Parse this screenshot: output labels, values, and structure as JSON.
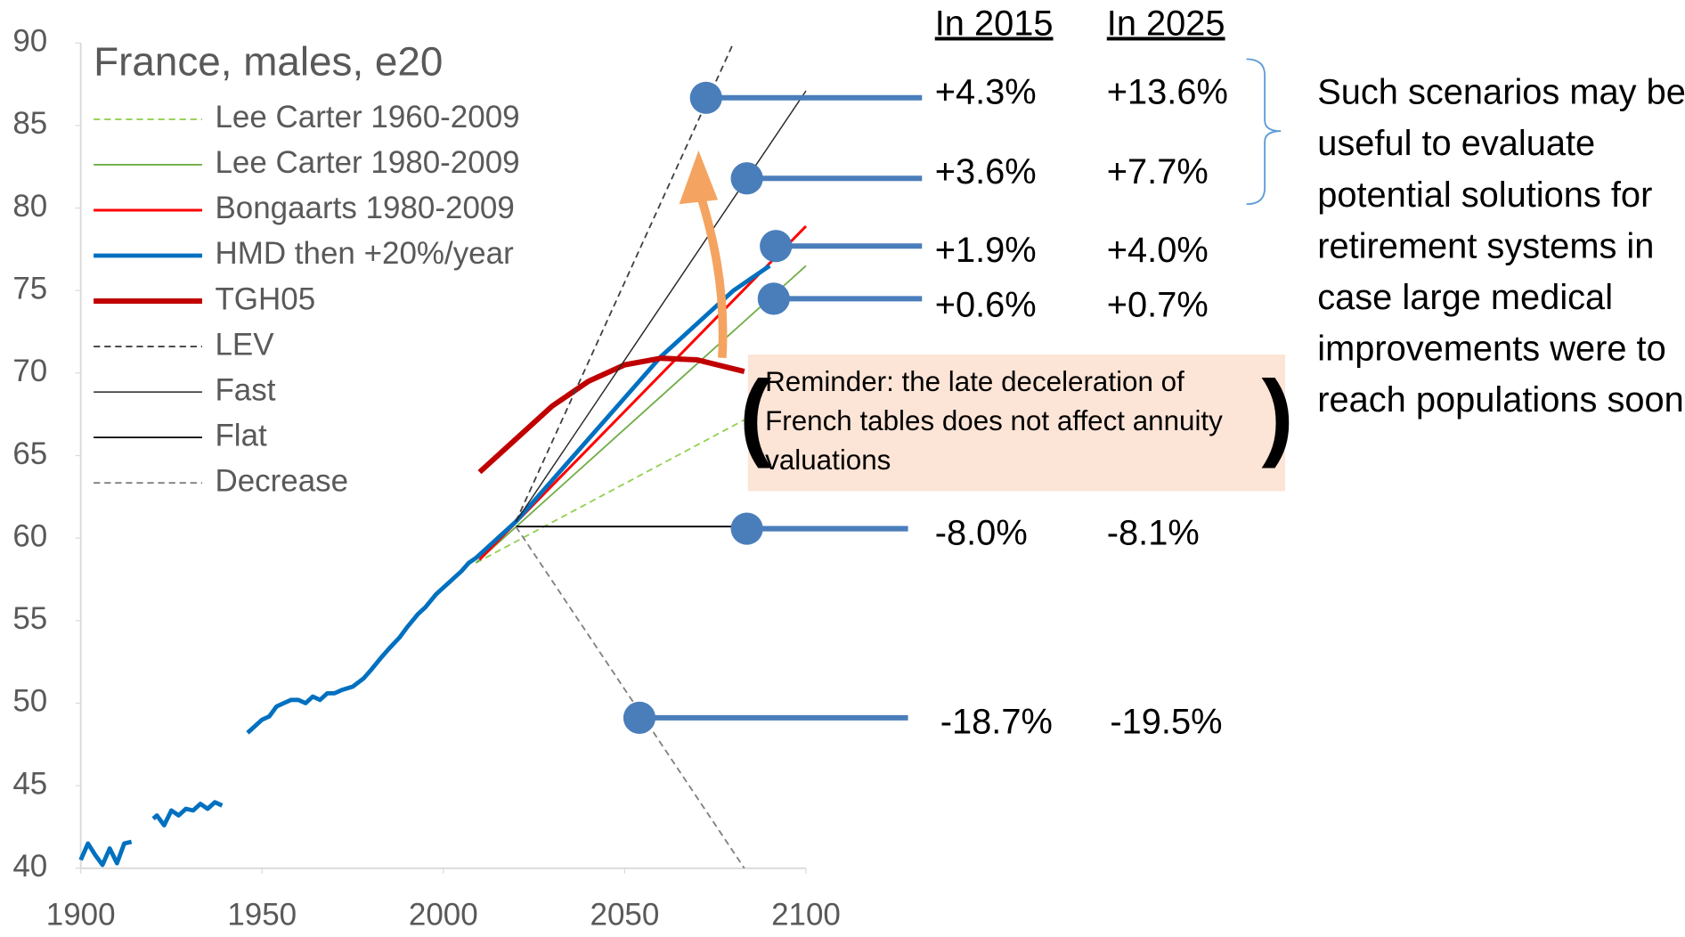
{
  "chart_data": {
    "type": "line",
    "title": "France, males, e20",
    "xlim": [
      1900,
      2100
    ],
    "xticks": [
      1900,
      1950,
      2000,
      2050,
      2100
    ],
    "ylim": [
      40,
      90
    ],
    "yticks": [
      40,
      45,
      50,
      55,
      60,
      65,
      70,
      75,
      80,
      85,
      90
    ],
    "legend": "upper left",
    "series": [
      {
        "name": "Lee Carter 1960-2009",
        "color": "#92d050",
        "width": 1.5,
        "dash": true,
        "x": [
          2009,
          2085
        ],
        "values": [
          58.5,
          67.4
        ]
      },
      {
        "name": "Lee Carter 1980-2009",
        "color": "#70ad47",
        "width": 1.5,
        "dash": false,
        "x": [
          2009,
          2100
        ],
        "values": [
          58.5,
          76.5
        ]
      },
      {
        "name": "Bongaarts 1980-2009",
        "color": "#ff0000",
        "width": 2.5,
        "dash": false,
        "x": [
          2010,
          2100
        ],
        "values": [
          58.7,
          78.9
        ]
      },
      {
        "name": "HMD then +20%/year",
        "color": "#0070c0",
        "width": 4,
        "dash": false,
        "x": [
          1900,
          1902,
          1904,
          1906,
          1908,
          1910,
          1912,
          1914,
          1915,
          1920,
          1921,
          1923,
          1925,
          1927,
          1929,
          1931,
          1933,
          1935,
          1937,
          1939,
          1940,
          1946,
          1948,
          1950,
          1952,
          1954,
          1956,
          1958,
          1960,
          1962,
          1964,
          1966,
          1968,
          1970,
          1972,
          1975,
          1978,
          1980,
          1983,
          1985,
          1988,
          1990,
          1993,
          1995,
          1998,
          2000,
          2003,
          2005,
          2007,
          2009,
          2020,
          2030,
          2040,
          2050,
          2060,
          2070,
          2080,
          2090
        ],
        "values": [
          40.5,
          41.5,
          40.8,
          40.2,
          41.2,
          40.3,
          41.5,
          41.6,
          null,
          43,
          43.2,
          42.6,
          43.5,
          43.2,
          43.6,
          43.5,
          43.9,
          43.6,
          44,
          43.8,
          null,
          48.2,
          48.6,
          49,
          49.2,
          49.8,
          50,
          50.2,
          50.2,
          50,
          50.4,
          50.2,
          50.6,
          50.6,
          50.8,
          51,
          51.5,
          52,
          52.8,
          53.3,
          54,
          54.6,
          55.4,
          55.8,
          56.6,
          57,
          57.6,
          58,
          58.5,
          58.8,
          61,
          63.5,
          66,
          68.5,
          71,
          73,
          75,
          76.5
        ]
      },
      {
        "name": "TGH05",
        "color": "#c00000",
        "width": 5,
        "dash": false,
        "x": [
          2010,
          2020,
          2030,
          2040,
          2050,
          2060,
          2070,
          2083
        ],
        "values": [
          64,
          66,
          68,
          69.5,
          70.5,
          70.9,
          70.8,
          70.1
        ]
      },
      {
        "name": "LEV",
        "color": "#404040",
        "width": 1.5,
        "dash": true,
        "x": [
          2020,
          2080
        ],
        "values": [
          61,
          90
        ]
      },
      {
        "name": "Fast",
        "color": "#262626",
        "width": 1.2,
        "dash": false,
        "x": [
          2020,
          2100
        ],
        "values": [
          61,
          87.1
        ]
      },
      {
        "name": "Flat",
        "color": "#000000",
        "width": 1.5,
        "dash": false,
        "x": [
          2020,
          2082
        ],
        "values": [
          60.7,
          60.7
        ]
      },
      {
        "name": "Decrease",
        "color": "#7f7f7f",
        "width": 1.5,
        "dash": true,
        "x": [
          2020,
          2083
        ],
        "values": [
          60.7,
          40
        ]
      }
    ]
  },
  "annotations": {
    "columns": [
      "In 2015",
      "In 2025"
    ],
    "rows": [
      [
        "+4.3%",
        "+13.6%"
      ],
      [
        "+3.6%",
        "+7.7%"
      ],
      [
        "+1.9%",
        "+4.0%"
      ],
      [
        "+0.6%",
        "+0.7%"
      ],
      [
        "-8.0%",
        "-8.1%"
      ],
      [
        "-18.7%",
        "-19.5%"
      ]
    ],
    "note": [
      "Such scenarios may be",
      "useful to evaluate",
      "potential solutions for",
      "retirement systems  in",
      "case large medical",
      "improvements were to",
      "reach populations soon"
    ],
    "reminder": [
      "Reminder:  the late deceleration of",
      "French tables does not affect annuity",
      "valuations"
    ]
  }
}
